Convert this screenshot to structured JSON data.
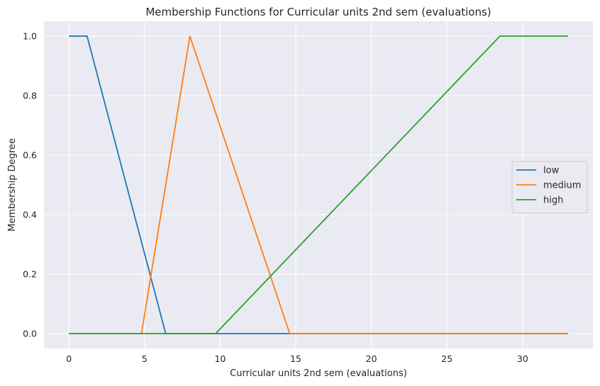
{
  "chart_data": {
    "type": "line",
    "title": "Membership Functions for Curricular units 2nd sem (evaluations)",
    "xlabel": "Curricular units 2nd sem (evaluations)",
    "ylabel": "Membership Degree",
    "xlim": [
      -1.65,
      34.65
    ],
    "ylim": [
      -0.05,
      1.05
    ],
    "xticks": [
      0,
      5,
      10,
      15,
      20,
      25,
      30
    ],
    "yticks": [
      0.0,
      0.2,
      0.4,
      0.6,
      0.8,
      1.0
    ],
    "xtick_labels": [
      "0",
      "5",
      "10",
      "15",
      "20",
      "25",
      "30"
    ],
    "ytick_labels": [
      "0.0",
      "0.2",
      "0.4",
      "0.6",
      "0.8",
      "1.0"
    ],
    "grid": true,
    "legend_position": "center-right",
    "series": [
      {
        "name": "low",
        "color": "#1f77b4",
        "x": [
          0,
          1.2,
          6.4,
          33
        ],
        "y": [
          1,
          1,
          0,
          0
        ]
      },
      {
        "name": "medium",
        "color": "#ff7f0e",
        "x": [
          0,
          4.8,
          8,
          14.6,
          33
        ],
        "y": [
          0,
          0,
          1,
          0,
          0
        ]
      },
      {
        "name": "high",
        "color": "#2ca02c",
        "x": [
          0,
          9.7,
          28.5,
          33
        ],
        "y": [
          0,
          0,
          1,
          1
        ]
      }
    ]
  }
}
